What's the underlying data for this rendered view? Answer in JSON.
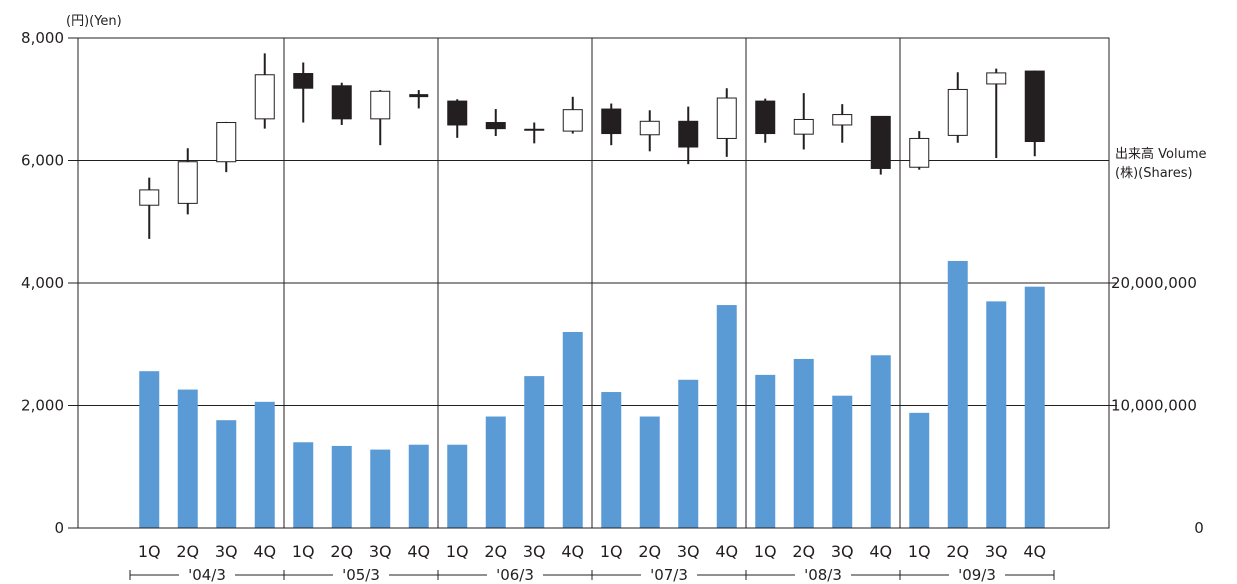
{
  "chart_data": {
    "type": "candlestick+bar",
    "left_axis": {
      "label": "(円)(Yen)",
      "ticks": [
        "0",
        "2,000",
        "4,000",
        "6,000",
        "8,000"
      ],
      "range": [
        0,
        8000
      ]
    },
    "right_axis": {
      "label_line1": "出来高 Volume",
      "label_line2": "(株)(Shares)",
      "ticks": [
        "0",
        "10,000,000",
        "20,000,000"
      ],
      "range": [
        0,
        40000000
      ]
    },
    "fiscal_years": [
      "'04/3",
      "'05/3",
      "'06/3",
      "'07/3",
      "'08/3",
      "'09/3"
    ],
    "quarters": [
      "1Q",
      "2Q",
      "3Q",
      "4Q"
    ],
    "grid": "horizontal at 2,000 / 4,000 / 6,000; vertical between fiscal years",
    "colors": {
      "bar": "#5b9bd5",
      "up_body": "#ffffff",
      "down_body": "#231f20",
      "line": "#231f20"
    },
    "price": [
      {
        "open": 5270,
        "close": 5520,
        "high": 5720,
        "low": 4720
      },
      {
        "open": 5300,
        "close": 5980,
        "high": 6200,
        "low": 5120
      },
      {
        "open": 5980,
        "close": 6620,
        "high": 6630,
        "low": 5810
      },
      {
        "open": 6680,
        "close": 7400,
        "high": 7750,
        "low": 6520
      },
      {
        "open": 7420,
        "close": 7180,
        "high": 7600,
        "low": 6620
      },
      {
        "open": 7220,
        "close": 6680,
        "high": 7270,
        "low": 6580
      },
      {
        "open": 6680,
        "close": 7130,
        "high": 7150,
        "low": 6250
      },
      {
        "open": 7060,
        "close": 7060,
        "high": 7150,
        "low": 6850
      },
      {
        "open": 6970,
        "close": 6580,
        "high": 7000,
        "low": 6370
      },
      {
        "open": 6620,
        "close": 6520,
        "high": 6840,
        "low": 6400
      },
      {
        "open": 6510,
        "close": 6500,
        "high": 6620,
        "low": 6280
      },
      {
        "open": 6480,
        "close": 6830,
        "high": 7040,
        "low": 6440
      },
      {
        "open": 6840,
        "close": 6440,
        "high": 6930,
        "low": 6250
      },
      {
        "open": 6420,
        "close": 6640,
        "high": 6820,
        "low": 6150
      },
      {
        "open": 6640,
        "close": 6220,
        "high": 6880,
        "low": 5940
      },
      {
        "open": 6360,
        "close": 7020,
        "high": 7180,
        "low": 6060
      },
      {
        "open": 6970,
        "close": 6440,
        "high": 7010,
        "low": 6290
      },
      {
        "open": 6430,
        "close": 6670,
        "high": 7100,
        "low": 6180
      },
      {
        "open": 6580,
        "close": 6750,
        "high": 6920,
        "low": 6290
      },
      {
        "open": 6720,
        "close": 5870,
        "high": 6720,
        "low": 5770
      },
      {
        "open": 5890,
        "close": 6360,
        "high": 6480,
        "low": 5850
      },
      {
        "open": 6410,
        "close": 7160,
        "high": 7440,
        "low": 6290
      },
      {
        "open": 7250,
        "close": 7430,
        "high": 7500,
        "low": 6040
      },
      {
        "open": 7460,
        "close": 6310,
        "high": 7470,
        "low": 6070
      }
    ],
    "volume": [
      12800000,
      11300000,
      8800000,
      10300000,
      7000000,
      6700000,
      6400000,
      6800000,
      6800000,
      9100000,
      12400000,
      16000000,
      11100000,
      9100000,
      12100000,
      18200000,
      12500000,
      13800000,
      10800000,
      14100000,
      9400000,
      21800000,
      18500000,
      19700000
    ]
  }
}
